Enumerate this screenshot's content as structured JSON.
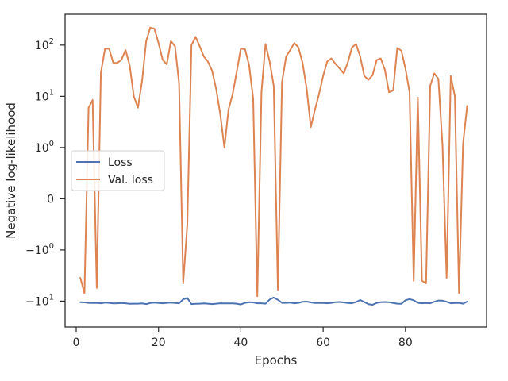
{
  "chart_data": {
    "type": "line",
    "xlabel": "Epochs",
    "ylabel": "Negative log-likelihood",
    "yscale": "symlog",
    "xlim": [
      -2.7,
      99.7
    ],
    "ylim": [
      -32,
      400
    ],
    "grid": false,
    "legend": {
      "placement": "center-left"
    },
    "x_ticks": [
      {
        "value": 0,
        "label": "0"
      },
      {
        "value": 20,
        "label": "20"
      },
      {
        "value": 40,
        "label": "40"
      },
      {
        "value": 60,
        "label": "60"
      },
      {
        "value": 80,
        "label": "80"
      }
    ],
    "y_ticks": [
      {
        "value": -10,
        "label": "−10",
        "sup": "1"
      },
      {
        "value": -1,
        "label": "−10",
        "sup": "0"
      },
      {
        "value": 0,
        "label": "0",
        "sup": ""
      },
      {
        "value": 1,
        "label": "10",
        "sup": "0"
      },
      {
        "value": 10,
        "label": "10",
        "sup": "1"
      },
      {
        "value": 100,
        "label": "10",
        "sup": "2"
      }
    ],
    "x": [
      1,
      2,
      3,
      4,
      5,
      6,
      7,
      8,
      9,
      10,
      11,
      12,
      13,
      14,
      15,
      16,
      17,
      18,
      19,
      20,
      21,
      22,
      23,
      24,
      25,
      26,
      27,
      28,
      29,
      30,
      31,
      32,
      33,
      34,
      35,
      36,
      37,
      38,
      39,
      40,
      41,
      42,
      43,
      44,
      45,
      46,
      47,
      48,
      49,
      50,
      51,
      52,
      53,
      54,
      55,
      56,
      57,
      58,
      59,
      60,
      61,
      62,
      63,
      64,
      65,
      66,
      67,
      68,
      69,
      70,
      71,
      72,
      73,
      74,
      75,
      76,
      77,
      78,
      79,
      80,
      81,
      82,
      83,
      84,
      85,
      86,
      87,
      88,
      89,
      90,
      91,
      92,
      93,
      94,
      95
    ],
    "series": [
      {
        "name": "Loss",
        "color": "#4c72b0",
        "values": [
          -10.5,
          -10.6,
          -10.8,
          -10.9,
          -10.8,
          -11.0,
          -10.7,
          -10.8,
          -11.1,
          -11.0,
          -10.9,
          -11.0,
          -11.3,
          -11.2,
          -11.2,
          -11.1,
          -11.4,
          -10.9,
          -10.7,
          -10.9,
          -11.0,
          -10.8,
          -10.7,
          -10.9,
          -11.0,
          -9.2,
          -8.7,
          -11.4,
          -11.3,
          -11.2,
          -11.1,
          -11.2,
          -11.4,
          -11.2,
          -11.0,
          -11.1,
          -11.1,
          -11.1,
          -11.2,
          -11.6,
          -10.8,
          -10.5,
          -10.6,
          -11.0,
          -11.0,
          -11.2,
          -9.3,
          -8.5,
          -9.4,
          -10.8,
          -10.8,
          -10.7,
          -11.0,
          -10.8,
          -10.3,
          -10.2,
          -10.6,
          -10.9,
          -10.8,
          -10.9,
          -11.0,
          -10.8,
          -10.5,
          -10.4,
          -10.6,
          -10.9,
          -11.0,
          -10.4,
          -9.5,
          -10.4,
          -11.5,
          -11.8,
          -10.8,
          -10.5,
          -10.4,
          -10.5,
          -10.9,
          -11.2,
          -11.3,
          -9.6,
          -9.1,
          -9.6,
          -10.8,
          -11.0,
          -10.9,
          -11.0,
          -10.3,
          -9.7,
          -9.8,
          -10.3,
          -11.0,
          -10.9,
          -10.8,
          -11.2,
          -10.2
        ]
      },
      {
        "name": "Val. loss",
        "color": "#dd8452",
        "values": [
          -3.5,
          -7.0,
          6.0,
          8.5,
          -5.5,
          29,
          85,
          85,
          45,
          45,
          52,
          80,
          40,
          10,
          6,
          20,
          120,
          220,
          210,
          110,
          52,
          42,
          120,
          95,
          18,
          -4.5,
          -0.5,
          100,
          145,
          95,
          60,
          48,
          32,
          14,
          4.5,
          1.0,
          5.5,
          11,
          30,
          85,
          84,
          41,
          9,
          -8,
          12,
          105,
          48,
          16,
          -6,
          19,
          60,
          80,
          110,
          90,
          45,
          14,
          2.5,
          5.5,
          11,
          25,
          48,
          55,
          43,
          35,
          28,
          46,
          90,
          105,
          60,
          25,
          21,
          26,
          51,
          55,
          33,
          12,
          13,
          88,
          78,
          35,
          12,
          -4.0,
          9.5,
          -4.0,
          -4.5,
          16,
          28,
          22,
          1.1,
          -3.5,
          25,
          10,
          -7,
          1.2,
          6.5
        ]
      }
    ]
  }
}
